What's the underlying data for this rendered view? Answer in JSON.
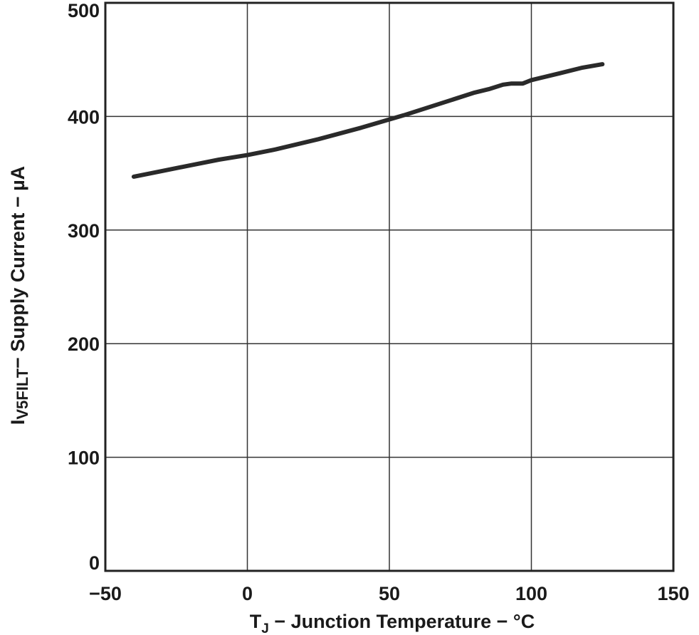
{
  "chart_data": {
    "type": "line",
    "title": "",
    "xlabel": {
      "main": "T",
      "sub": "J",
      "rest": " − Junction Temperature − °C"
    },
    "ylabel": {
      "main": "I",
      "sub": "V5FILT",
      "rest": "− Supply Current − µA"
    },
    "xlim": [
      -50,
      150
    ],
    "ylim": [
      0,
      500
    ],
    "x_ticks": [
      -50,
      0,
      50,
      100,
      150
    ],
    "y_ticks": [
      0,
      100,
      200,
      300,
      400,
      500
    ],
    "x_tick_labels": [
      "−50",
      "0",
      "50",
      "100",
      "150"
    ],
    "y_tick_labels": [
      "0",
      "100",
      "200",
      "300",
      "400",
      "500"
    ],
    "grid": true,
    "series": [
      {
        "color": "#2a2a2a",
        "x": [
          -40,
          -30,
          -20,
          -10,
          0,
          10,
          25,
          40,
          55,
          70,
          80,
          85,
          90,
          93,
          97,
          100,
          110,
          118,
          125
        ],
        "y": [
          347,
          352,
          357,
          362,
          366,
          371,
          380,
          390,
          401,
          413,
          421,
          424,
          428,
          429,
          429,
          432,
          438,
          443,
          446
        ]
      }
    ]
  }
}
